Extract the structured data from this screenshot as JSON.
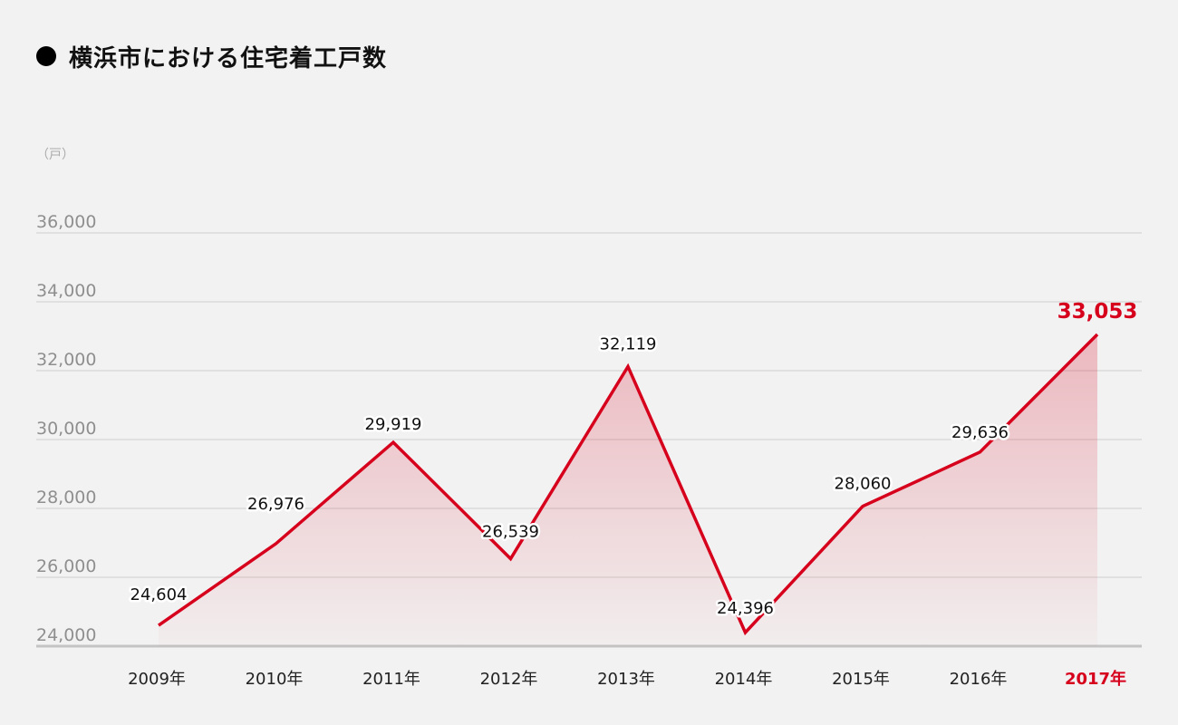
{
  "title": "横浜市における住宅着工戸数",
  "unit": "（戸）",
  "colors": {
    "line": "#d7001c",
    "highlight": "#d7001c",
    "grid": "#d6d6d6",
    "background": "#f2f2f2"
  },
  "chart_data": {
    "type": "area",
    "title": "横浜市における住宅着工戸数",
    "ylabel": "（戸）",
    "xlabel": "",
    "categories": [
      "2009年",
      "2010年",
      "2011年",
      "2012年",
      "2013年",
      "2014年",
      "2015年",
      "2016年",
      "2017年"
    ],
    "values": [
      24604,
      26976,
      29919,
      26539,
      32119,
      24396,
      28060,
      29636,
      33053
    ],
    "value_labels": [
      "24,604",
      "26,976",
      "29,919",
      "26,539",
      "32,119",
      "24,396",
      "28,060",
      "29,636",
      "33,053"
    ],
    "yticks": [
      24000,
      26000,
      28000,
      30000,
      32000,
      34000,
      36000
    ],
    "ytick_labels": [
      "24,000",
      "26,000",
      "28,000",
      "30,000",
      "32,000",
      "34,000",
      "36,000"
    ],
    "ylim": [
      24000,
      36000
    ],
    "grid": true,
    "highlight_category": "2017年",
    "legend": "none"
  }
}
